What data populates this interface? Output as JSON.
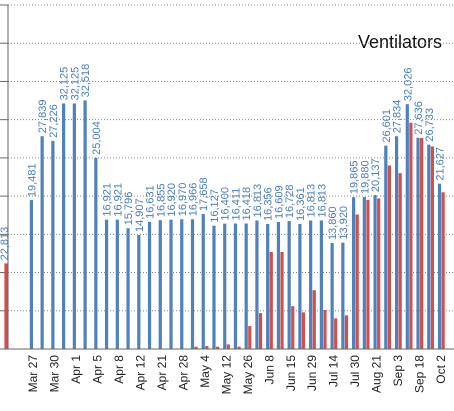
{
  "chart_data": {
    "type": "bar",
    "title": "Ventilators",
    "annotations": [
      "22,813"
    ],
    "categories": [
      null,
      "Mar 27",
      null,
      "Mar 30",
      null,
      "Apr 1",
      null,
      "Apr 5",
      null,
      "Apr 8",
      null,
      "Apr 12",
      null,
      "Apr 21",
      null,
      "Apr 28",
      null,
      "May 4",
      null,
      "May 12",
      null,
      "May 26",
      null,
      "Jun 8",
      null,
      "Jun 15",
      null,
      "Jun 29",
      null,
      "Jul 14",
      null,
      "Jul 30",
      null,
      "Aug 21",
      null,
      "Sep 3",
      null,
      "Sep 18",
      null,
      "Oct 2"
    ],
    "series": [
      {
        "color": "#4f81bd",
        "values": [
          null,
          19481,
          27839,
          27226,
          32125,
          32125,
          32518,
          25004,
          16921,
          16921,
          15796,
          14907,
          16631,
          16855,
          16920,
          16970,
          16966,
          17658,
          16127,
          16400,
          16411,
          16418,
          16813,
          16356,
          16609,
          16728,
          16361,
          16813,
          16813,
          13860,
          13920,
          19865,
          19880,
          20137,
          26601,
          27834,
          32026,
          27636,
          26733,
          21627
        ],
        "value_labels": [
          null,
          "19,481",
          "27,839",
          "27,226",
          "32,125",
          "32,125",
          "32,518",
          "25,004",
          "16,921",
          "16,921",
          "15,796",
          "14,907",
          "16,631",
          "16,855",
          "16,920",
          "16,970",
          "16,966",
          "17,658",
          "16,127",
          "16,400",
          "16,411",
          "16,418",
          "16,813",
          "16,356",
          "16,609",
          "16,728",
          "16,361",
          "16,813",
          "16,813",
          "13,860",
          "13,920",
          "19,865",
          "19,880",
          "20,137",
          "26,601",
          "27,834",
          "32,026",
          "27,636",
          "26,733",
          "21,627"
        ]
      },
      {
        "color": "#d0504d",
        "values": [
          11200,
          null,
          null,
          null,
          null,
          null,
          null,
          null,
          null,
          null,
          null,
          null,
          null,
          null,
          null,
          null,
          300,
          400,
          300,
          600,
          300,
          3000,
          4700,
          12700,
          12700,
          5600,
          4800,
          7700,
          5100,
          4000,
          4400,
          17600,
          19500,
          19700,
          24000,
          23000,
          29600,
          27600,
          26500,
          20500
        ]
      }
    ],
    "ylim": [
      0,
      45000
    ],
    "yticks": [
      0,
      5000,
      10000,
      15000,
      20000,
      25000,
      30000,
      35000,
      40000,
      45000
    ],
    "grid": true
  }
}
